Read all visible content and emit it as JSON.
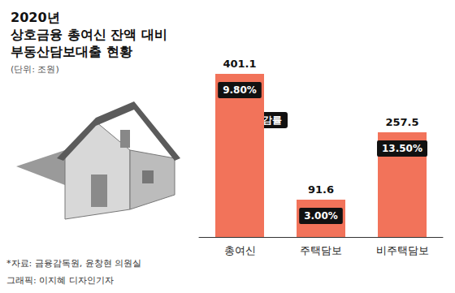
{
  "chart_data": {
    "type": "bar",
    "title": "2020년\n상호금융 총여신 잔액 대비\n부동산담보대출 현황",
    "subtitle": "(단위: 조원)",
    "categories": [
      "총여신",
      "주택담보",
      "비주택담보"
    ],
    "values": [
      401.1,
      91.6,
      257.5
    ],
    "color": "#f2735a",
    "ylim": [
      0,
      401.1
    ],
    "data_labels": true,
    "tick_labels": "x",
    "grid": false,
    "growth_rates": [
      9.8,
      3.0,
      13.5
    ],
    "growth_labels": [
      "9.80%",
      "3.00%",
      "13.50%"
    ],
    "annotation": "증감률",
    "source": "*자료: 금융감독원, 윤창현 의원실",
    "credit": "그래픽: 이지혜 디자인기자"
  }
}
